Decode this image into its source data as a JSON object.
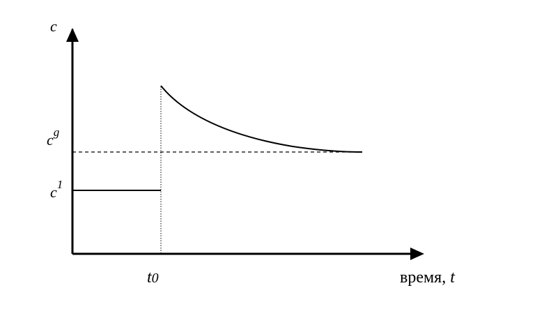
{
  "diagram": {
    "y_axis_label": "c",
    "x_axis_label_word": "время",
    "x_axis_label_separator": ", ",
    "x_axis_label_var": "t",
    "t0_label": "t",
    "t0_subscript": "0",
    "level_g": {
      "base": "c",
      "superscript": "g"
    },
    "level_1": {
      "base": "c",
      "superscript": "1"
    },
    "colors": {
      "stroke": "#000000",
      "background": "#ffffff"
    }
  }
}
